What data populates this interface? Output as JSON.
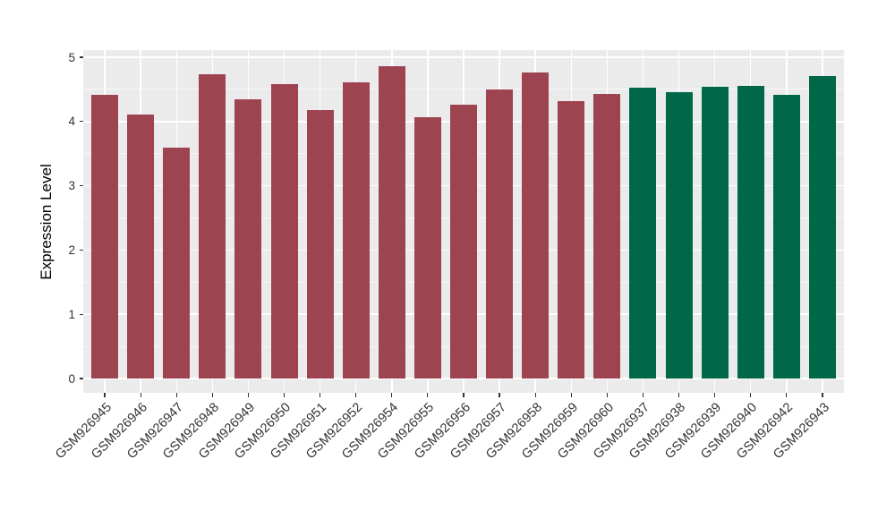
{
  "figure": {
    "background": "#FFFFFF",
    "panel_background": "#EBEBEB",
    "gridline_color": "#FFFFFF",
    "axis_text_color": "#333333",
    "axis_title_color": "#000000"
  },
  "chart_data": {
    "type": "bar",
    "title": "",
    "xlabel": "",
    "ylabel": "Expression Level",
    "ylim": [
      0,
      5.1
    ],
    "yticks": [
      0,
      1,
      2,
      3,
      4,
      5
    ],
    "grid": "major horizontal at integers, minor horizontal at halves, vertical major at category centers, white on gray panel",
    "legend_position": "none",
    "categories": [
      "GSM926945",
      "GSM926946",
      "GSM926947",
      "GSM926948",
      "GSM926949",
      "GSM926950",
      "GSM926951",
      "GSM926952",
      "GSM926954",
      "GSM926955",
      "GSM926956",
      "GSM926957",
      "GSM926958",
      "GSM926959",
      "GSM926960",
      "GSM926937",
      "GSM926938",
      "GSM926939",
      "GSM926940",
      "GSM926942",
      "GSM926943"
    ],
    "values": [
      4.41,
      4.11,
      3.59,
      4.74,
      4.35,
      4.58,
      4.18,
      4.61,
      4.86,
      4.07,
      4.26,
      4.5,
      4.76,
      4.32,
      4.43,
      4.52,
      4.45,
      4.54,
      4.56,
      4.41,
      4.71
    ],
    "colors": [
      "#9E4451",
      "#9E4451",
      "#9E4451",
      "#9E4451",
      "#9E4451",
      "#9E4451",
      "#9E4451",
      "#9E4451",
      "#9E4451",
      "#9E4451",
      "#9E4451",
      "#9E4451",
      "#9E4451",
      "#9E4451",
      "#9E4451",
      "#006849",
      "#006849",
      "#006849",
      "#006849",
      "#006849",
      "#006849"
    ]
  }
}
